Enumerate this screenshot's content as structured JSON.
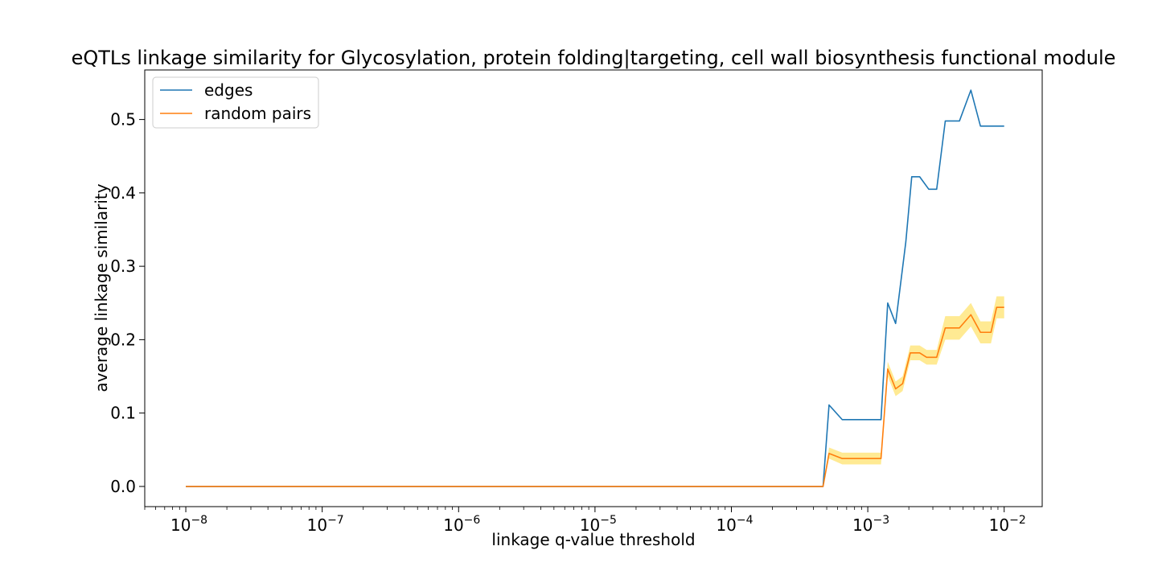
{
  "chart_data": {
    "type": "line",
    "title": "eQTLs linkage similarity for Glycosylation, protein folding|targeting, cell wall biosynthesis functional module",
    "xlabel": "linkage q-value threshold",
    "ylabel": "average linkage similarity",
    "xscale": "log",
    "xlim": [
      5e-09,
      0.019
    ],
    "ylim": [
      -0.0275,
      0.5675
    ],
    "xticks": [
      {
        "value": 1e-08,
        "base": "10",
        "exp": "−8"
      },
      {
        "value": 1e-07,
        "base": "10",
        "exp": "−7"
      },
      {
        "value": 1e-06,
        "base": "10",
        "exp": "−6"
      },
      {
        "value": 1e-05,
        "base": "10",
        "exp": "−5"
      },
      {
        "value": 0.0001,
        "base": "10",
        "exp": "−4"
      },
      {
        "value": 0.001,
        "base": "10",
        "exp": "−3"
      },
      {
        "value": 0.01,
        "base": "10",
        "exp": "−2"
      }
    ],
    "yticks": [
      {
        "value": 0.0,
        "label": "0.0"
      },
      {
        "value": 0.1,
        "label": "0.1"
      },
      {
        "value": 0.2,
        "label": "0.2"
      },
      {
        "value": 0.3,
        "label": "0.3"
      },
      {
        "value": 0.4,
        "label": "0.4"
      },
      {
        "value": 0.5,
        "label": "0.5"
      }
    ],
    "grid": false,
    "legend_position": "top-left",
    "series": [
      {
        "name": "edges",
        "color": "#1f77b4",
        "points": [
          [
            1e-08,
            0.0
          ],
          [
            1e-07,
            0.0
          ],
          [
            1e-06,
            0.0
          ],
          [
            1e-05,
            0.0
          ],
          [
            0.0001,
            0.0
          ],
          [
            0.00047,
            0.0
          ],
          [
            0.00052,
            0.111
          ],
          [
            0.00065,
            0.091
          ],
          [
            0.0008,
            0.091
          ],
          [
            0.00125,
            0.091
          ],
          [
            0.0014,
            0.25
          ],
          [
            0.0016,
            0.222
          ],
          [
            0.0019,
            0.333
          ],
          [
            0.0021,
            0.422
          ],
          [
            0.0024,
            0.422
          ],
          [
            0.0028,
            0.405
          ],
          [
            0.0032,
            0.405
          ],
          [
            0.0037,
            0.498
          ],
          [
            0.0047,
            0.498
          ],
          [
            0.0057,
            0.54
          ],
          [
            0.0067,
            0.491
          ],
          [
            0.008,
            0.491
          ],
          [
            0.01,
            0.491
          ]
        ]
      },
      {
        "name": "random pairs",
        "color": "#ff7f0e",
        "band_color": "#ffe680",
        "points": [
          [
            1e-08,
            0.0,
            0.0,
            0.0
          ],
          [
            1e-07,
            0.0,
            0.0,
            0.0
          ],
          [
            1e-06,
            0.0,
            0.0,
            0.0
          ],
          [
            1e-05,
            0.0,
            0.0,
            0.0
          ],
          [
            0.0001,
            0.0,
            0.0,
            0.0
          ],
          [
            0.00047,
            0.0,
            0.0,
            0.0
          ],
          [
            0.00052,
            0.045,
            0.038,
            0.053
          ],
          [
            0.00065,
            0.038,
            0.03,
            0.046
          ],
          [
            0.0008,
            0.038,
            0.03,
            0.046
          ],
          [
            0.00125,
            0.038,
            0.03,
            0.046
          ],
          [
            0.0014,
            0.16,
            0.15,
            0.17
          ],
          [
            0.0016,
            0.133,
            0.123,
            0.143
          ],
          [
            0.0018,
            0.14,
            0.13,
            0.15
          ],
          [
            0.00205,
            0.182,
            0.172,
            0.192
          ],
          [
            0.0024,
            0.182,
            0.172,
            0.192
          ],
          [
            0.0027,
            0.176,
            0.166,
            0.186
          ],
          [
            0.0032,
            0.176,
            0.166,
            0.186
          ],
          [
            0.0037,
            0.216,
            0.2,
            0.232
          ],
          [
            0.0047,
            0.216,
            0.2,
            0.232
          ],
          [
            0.0057,
            0.234,
            0.218,
            0.25
          ],
          [
            0.0067,
            0.21,
            0.195,
            0.225
          ],
          [
            0.008,
            0.21,
            0.195,
            0.225
          ],
          [
            0.0088,
            0.244,
            0.229,
            0.259
          ],
          [
            0.01,
            0.244,
            0.229,
            0.259
          ]
        ]
      }
    ]
  }
}
